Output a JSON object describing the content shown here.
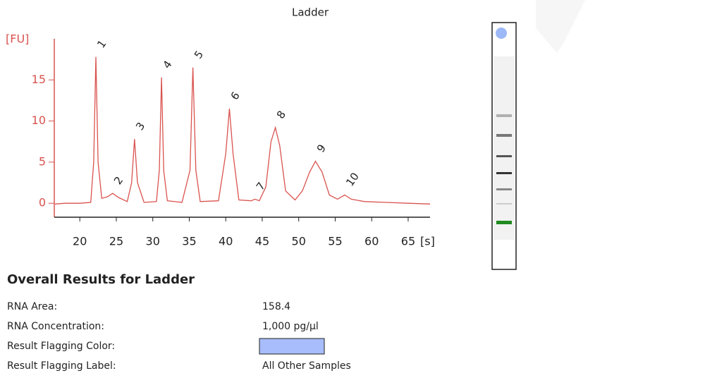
{
  "chart_data": {
    "type": "line",
    "title": "Ladder",
    "ylabel": "[FU]",
    "xlabel": "[s]",
    "xlim": [
      16.5,
      68
    ],
    "xticks": [
      20,
      25,
      30,
      35,
      40,
      45,
      50,
      55,
      60,
      65
    ],
    "ylim": [
      -1.7,
      20
    ],
    "yticks": [
      0,
      5,
      10,
      15
    ],
    "series": [
      {
        "color": "#d9534f",
        "x": [
          16.6,
          18,
          20,
          21.5,
          21.9,
          22.2,
          22.5,
          23,
          23.8,
          24.5,
          25.3,
          26.5,
          27.1,
          27.5,
          27.9,
          28.8,
          30.5,
          30.9,
          31.2,
          31.5,
          32,
          34,
          35.1,
          35.5,
          35.9,
          36.5,
          39,
          40,
          40.5,
          41,
          41.8,
          43.5,
          44,
          44.6,
          45.5,
          46.2,
          46.8,
          47.4,
          48.2,
          49.5,
          50.5,
          51.5,
          52.3,
          53.2,
          54.2,
          55.3,
          56.3,
          57.2,
          59,
          62,
          65,
          68
        ],
        "values": [
          -0.1,
          0,
          0,
          0.1,
          5,
          17.8,
          5,
          0.6,
          0.8,
          1.2,
          0.7,
          0.2,
          2.5,
          7.8,
          2.5,
          0.1,
          0.2,
          4,
          15.3,
          4,
          0.3,
          0.1,
          4,
          16.5,
          4,
          0.2,
          0.3,
          6,
          11.5,
          6,
          0.4,
          0.3,
          0.5,
          0.3,
          2,
          7.5,
          9.2,
          7,
          1.5,
          0.4,
          1.5,
          3.8,
          5.1,
          3.8,
          1,
          0.5,
          1,
          0.5,
          0.2,
          0.1,
          0,
          -0.1
        ]
      }
    ],
    "peaks": [
      {
        "label": "1",
        "x": 22.2,
        "y": 17.8,
        "color": "#2e8b2e"
      },
      {
        "label": "2",
        "x": 24.5,
        "y": 1.2,
        "color": "#222222"
      },
      {
        "label": "3",
        "x": 27.5,
        "y": 7.8,
        "color": "#222222"
      },
      {
        "label": "4",
        "x": 31.2,
        "y": 15.3,
        "color": "#222222"
      },
      {
        "label": "5",
        "x": 35.5,
        "y": 16.5,
        "color": "#222222"
      },
      {
        "label": "6",
        "x": 40.5,
        "y": 11.5,
        "color": "#222222"
      },
      {
        "label": "7",
        "x": 44,
        "y": 0.5,
        "color": "#222222"
      },
      {
        "label": "8",
        "x": 46.8,
        "y": 9.2,
        "color": "#222222"
      },
      {
        "label": "9",
        "x": 52.3,
        "y": 5.1,
        "color": "#222222"
      },
      {
        "label": "10",
        "x": 56.3,
        "y": 1,
        "color": "#222222"
      }
    ]
  },
  "results": {
    "title": "Overall Results for Ladder",
    "rows": [
      {
        "label": "RNA Area:",
        "value": "158.4"
      },
      {
        "label": "RNA Concentration:",
        "value": "1,000 pg/µl"
      },
      {
        "label": "Result Flagging Color:",
        "color": "#a8bdfb"
      },
      {
        "label": "Result Flagging Label:",
        "value": "All Other Samples"
      }
    ]
  }
}
